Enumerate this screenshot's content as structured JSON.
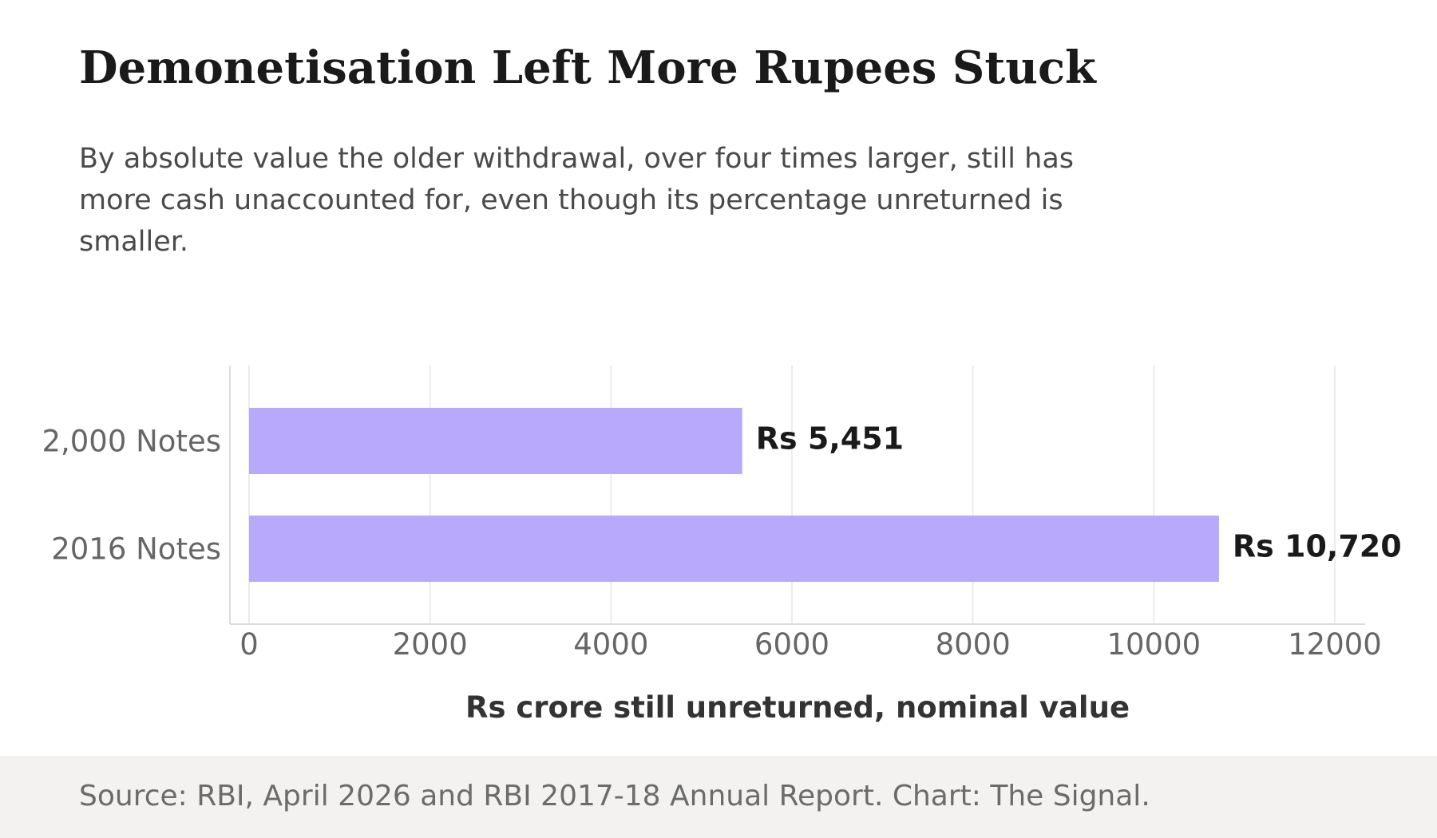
{
  "header": {
    "title": "Demonetisation Left More Rupees Stuck",
    "subtitle": "By absolute value the older withdrawal, over four times larger, still has more cash unaccounted for, even though its percentage unreturned is smaller."
  },
  "footer": {
    "source": "Source: RBI, April 2026 and RBI 2017-18 Annual Report. Chart: The Signal."
  },
  "chart_data": {
    "type": "bar",
    "orientation": "horizontal",
    "categories": [
      "2,000 Notes",
      "2016 Notes"
    ],
    "values": [
      5451,
      10720
    ],
    "value_labels": [
      "Rs 5,451",
      "Rs 10,720"
    ],
    "xlabel": "Rs crore still unreturned, nominal value",
    "xlim": [
      0,
      12000
    ],
    "xticks": [
      0,
      2000,
      4000,
      6000,
      8000,
      10000,
      12000
    ],
    "grid": "vertical",
    "bar_color": "#b8a9fc",
    "gridline_color": "#e5e5e5",
    "axis_color": "#dddddd",
    "tick_label_color": "#666666"
  }
}
